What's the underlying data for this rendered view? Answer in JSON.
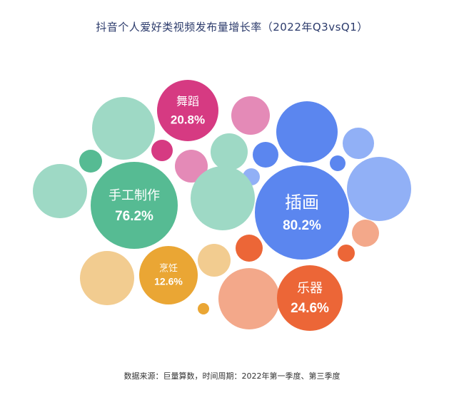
{
  "chart_data": {
    "type": "bubble",
    "title": "抖音个人爱好类视频发布量增长率（2022年Q3vsQ1）",
    "source": "数据来源：巨量算数，时间周期：2022年第一季度、第三季度",
    "labeled_bubbles": [
      {
        "name": "舞蹈",
        "value_text": "20.8%",
        "value": 20.8,
        "color": "#d63a82"
      },
      {
        "name": "手工制作",
        "value_text": "76.2%",
        "value": 76.2,
        "color": "#56bb93"
      },
      {
        "name": "插画",
        "value_text": "80.2%",
        "value": 80.2,
        "color": "#5b86ef"
      },
      {
        "name": "烹饪",
        "value_text": "12.6%",
        "value": 12.6,
        "color": "#eaa634"
      },
      {
        "name": "乐器",
        "value_text": "24.6%",
        "value": 24.6,
        "color": "#ec6637"
      }
    ],
    "colors": {
      "teal_light": "#9ed9c5",
      "teal": "#56bb93",
      "pink": "#d63a82",
      "pink_light": "#e48ab7",
      "blue": "#5b86ef",
      "blue_light": "#91b0f6",
      "orange": "#ec6637",
      "salmon": "#f3a88a",
      "yellow": "#eaa634",
      "yellow_light": "#f2cc90"
    }
  }
}
